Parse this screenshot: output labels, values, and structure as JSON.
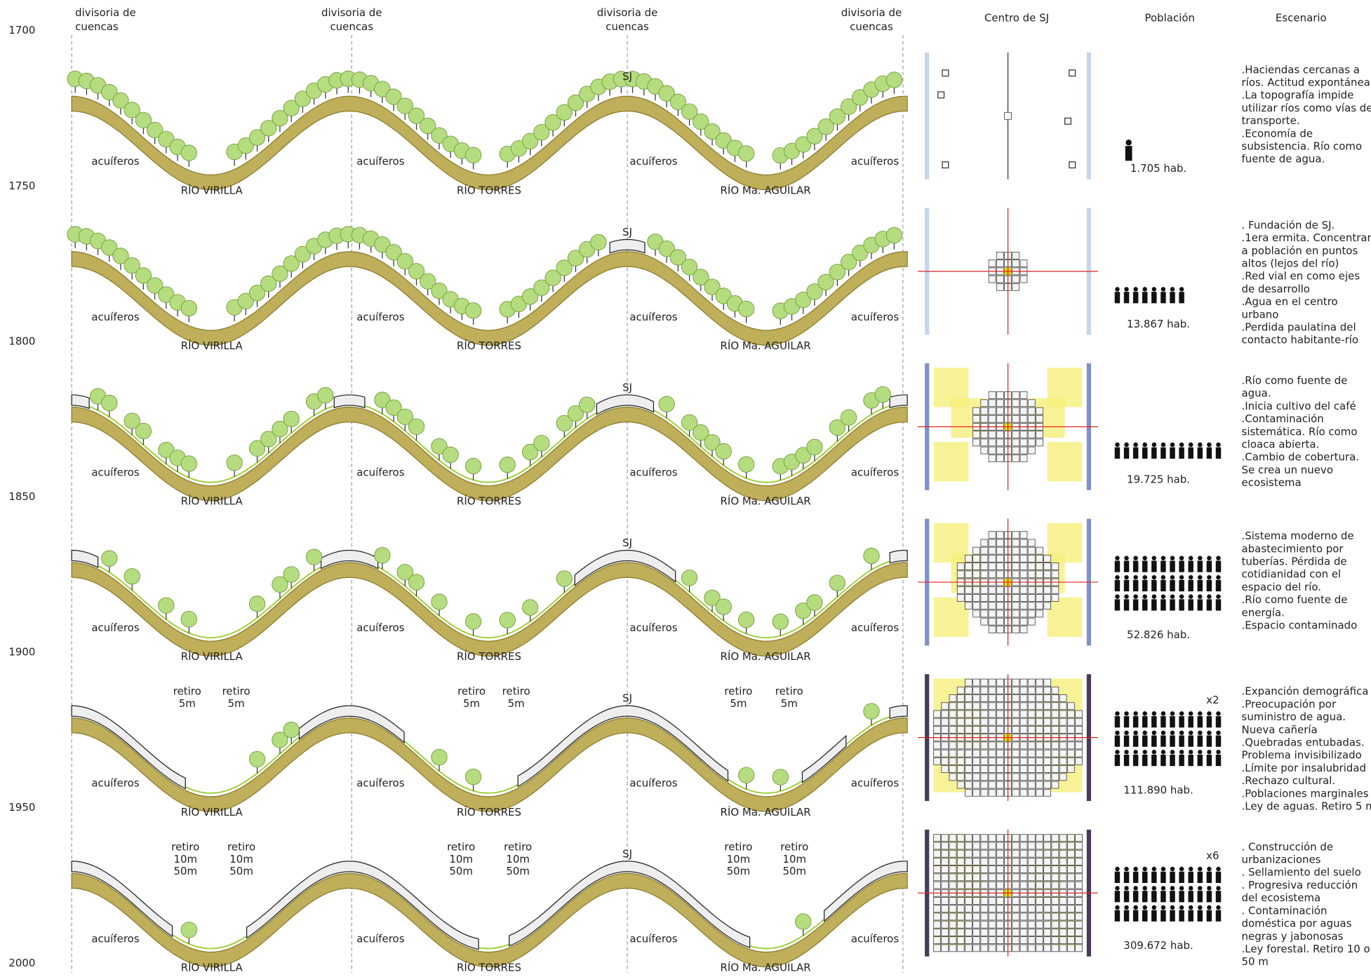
{
  "header": {
    "divides": [
      [
        "divisoria de",
        "cuencas"
      ],
      [
        "divisoria de",
        "cuencas"
      ],
      [
        "divisoria de",
        "cuencas"
      ],
      [
        "divisoria de",
        "cuencas"
      ]
    ],
    "columns": [
      "Centro de SJ",
      "Población",
      "Escenario"
    ]
  },
  "years": [
    1700,
    1750,
    1800,
    1850,
    1900,
    1950,
    2000
  ],
  "rows": [
    {
      "sj": "SJ",
      "aquifers": [
        "acuíferos",
        "acuíferos",
        "acuíferos",
        "acuíferos"
      ],
      "rivers": [
        "RÍO VIRILLA",
        "RÍO TORRES",
        "RÍO Ma. AGUILAR"
      ],
      "population": "1.705 hab.",
      "scenario": [
        ".Haciendas cercanas a",
        "ríos. Actitud expontánea",
        ".La topografía impide",
        "utilizar ríos como vías de",
        "transporte.",
        ".Economía de",
        "subsistencia. Río como",
        "fuente de agua."
      ]
    },
    {
      "sj": "SJ",
      "aquifers": [
        "acuíferos",
        "acuíferos",
        "acuíferos",
        "acuíferos"
      ],
      "rivers": [
        "RÍO VIRILLA",
        "RÍO TORRES",
        "RÍO Ma. AGUILAR"
      ],
      "population": "13.867 hab.",
      "scenario": [
        ". Fundación de SJ.",
        ".1era ermita. Concentrar",
        "a  población en puntos",
        "altos (lejos del río)",
        ".Red vial en como ejes",
        "de desarrollo",
        ".Agua en el centro",
        "urbano",
        ".Perdida paulatina del",
        "contacto habitante-río"
      ]
    },
    {
      "sj": "SJ",
      "aquifers": [
        "acuíferos",
        "acuíferos",
        "acuíferos",
        "acuíferos"
      ],
      "rivers": [
        "RÍO VIRILLA",
        "RÍO TORRES",
        "RÍO Ma. AGUILAR"
      ],
      "population": "19.725 hab.",
      "scenario": [
        ".Río como fuente de",
        "agua.",
        ".Inicia cultivo del café",
        ".Contaminación",
        "sistemática. Río como",
        "cloaca abierta.",
        ".Cambio de cobertura.",
        "Se crea un nuevo",
        "ecosistema"
      ]
    },
    {
      "sj": "SJ",
      "aquifers": [
        "acuíferos",
        "acuíferos",
        "acuíferos",
        "acuíferos"
      ],
      "rivers": [
        "RÍO VIRILLA",
        "RÍO TORRES",
        "RÍO Ma. AGUILAR"
      ],
      "population": "52.826 hab.",
      "scenario": [
        ".Sistema moderno de",
        "abastecimiento por",
        "tuberías. Pérdida de",
        "cotidianidad con el",
        "espacio del río.",
        ".Río como fuente de",
        "energía.",
        ".Espacio contaminado"
      ]
    },
    {
      "sj": "SJ",
      "aquifers": [
        "acuíferos",
        "acuíferos",
        "acuíferos",
        "acuíferos"
      ],
      "rivers": [
        "RÍO VIRILLA",
        "RÍO TORRES",
        "RÍO Ma. AGUILAR"
      ],
      "population": "111.890 hab.",
      "multiplier": "x2",
      "retiro": [
        [
          "retiro",
          "5m"
        ],
        [
          "retiro",
          "5m"
        ],
        [
          "retiro",
          "5m"
        ],
        [
          "retiro",
          "5m"
        ],
        [
          "retiro",
          "5m"
        ],
        [
          "retiro",
          "5m"
        ]
      ],
      "scenario": [
        ".Expanción demográfica",
        ".Preocupación por",
        "suministro de agua.",
        "Nueva cañería",
        ".Quebradas entubadas.",
        "Problema invisibilizado",
        ".Límite por insalubridad",
        ".Rechazo cultural.",
        ".Poblaciones marginales",
        ".Ley de aguas. Retiro 5 m"
      ]
    },
    {
      "sj": "SJ",
      "aquifers": [
        "acuíferos",
        "acuíferos",
        "acuíferos",
        "acuíferos"
      ],
      "rivers": [
        "RÍO VIRILLA",
        "RÍO TORRES",
        "RÍO Ma. AGUILAR"
      ],
      "population": "309.672 hab.",
      "multiplier": "x6",
      "retiro": [
        [
          "retiro",
          "10m",
          "50m"
        ],
        [
          "retiro",
          "10m",
          "50m"
        ],
        [
          "retiro",
          "10m",
          "50m"
        ],
        [
          "retiro",
          "10m",
          "50m"
        ],
        [
          "retiro",
          "10m",
          "50m"
        ],
        [
          "retiro",
          "10m",
          "50m"
        ]
      ],
      "scenario": [
        ". Construcción de",
        "urbanizaciones",
        ". Sellamiento del suelo",
        ". Progresiva reducción",
        "del ecosistema",
        ". Contaminación",
        "doméstica por aguas",
        "negras y jabonosas",
        ".Ley forestal. Retiro 10 o",
        "50 m"
      ]
    }
  ]
}
